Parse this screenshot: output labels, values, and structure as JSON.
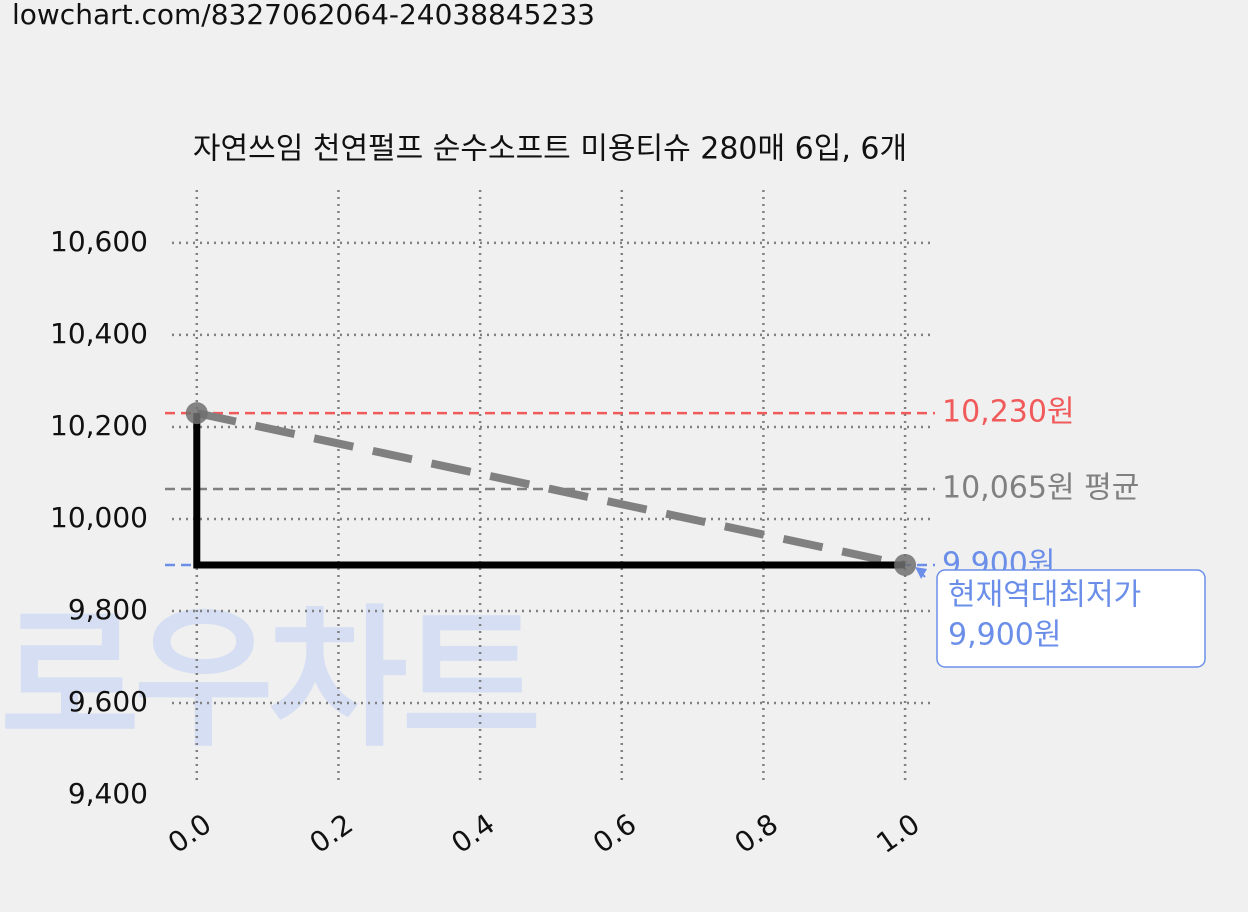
{
  "url": "lowchart.com/8327062064-24038845233",
  "chart_data": {
    "type": "step",
    "title": "자연쓰임 천연펄프 순수소프트 미용티슈 280매 6입, 6개",
    "watermark": "로우차트",
    "x": [
      0,
      1
    ],
    "series": [
      {
        "values": [
          10230,
          9900
        ],
        "color": "#000000",
        "trend_color": "#808080",
        "marker_color": "#707070"
      }
    ],
    "xlim": [
      -0.035,
      1.038
    ],
    "xticks": [
      {
        "value": 0,
        "label": "0.0"
      },
      0.2,
      0.4,
      0.6,
      0.8,
      {
        "value": 1,
        "label": "1.0"
      }
    ],
    "ylim": [
      9400,
      10715
    ],
    "yticks": [
      {
        "value": 9400,
        "label": "9,400"
      },
      {
        "value": 9600,
        "label": "9,600"
      },
      {
        "value": 9800,
        "label": "9,800"
      },
      {
        "value": 10000,
        "label": "10,000"
      },
      {
        "value": 10200,
        "label": "10,200"
      },
      {
        "value": 10400,
        "label": "10,400"
      },
      {
        "value": 10600,
        "label": "10,600"
      }
    ],
    "grid": true,
    "reference_lines": [
      {
        "value": 10230,
        "label": "10,230원",
        "color": "#f05a5a"
      },
      {
        "value": 10065,
        "label": "10,065원 평균",
        "color": "#808080"
      },
      {
        "value": 9900,
        "label": "9,900원",
        "color": "#6b8fe8"
      }
    ],
    "annotation": {
      "lines": [
        "현재역대최저가",
        "9,900원"
      ],
      "color": "#6b8fe8"
    }
  }
}
